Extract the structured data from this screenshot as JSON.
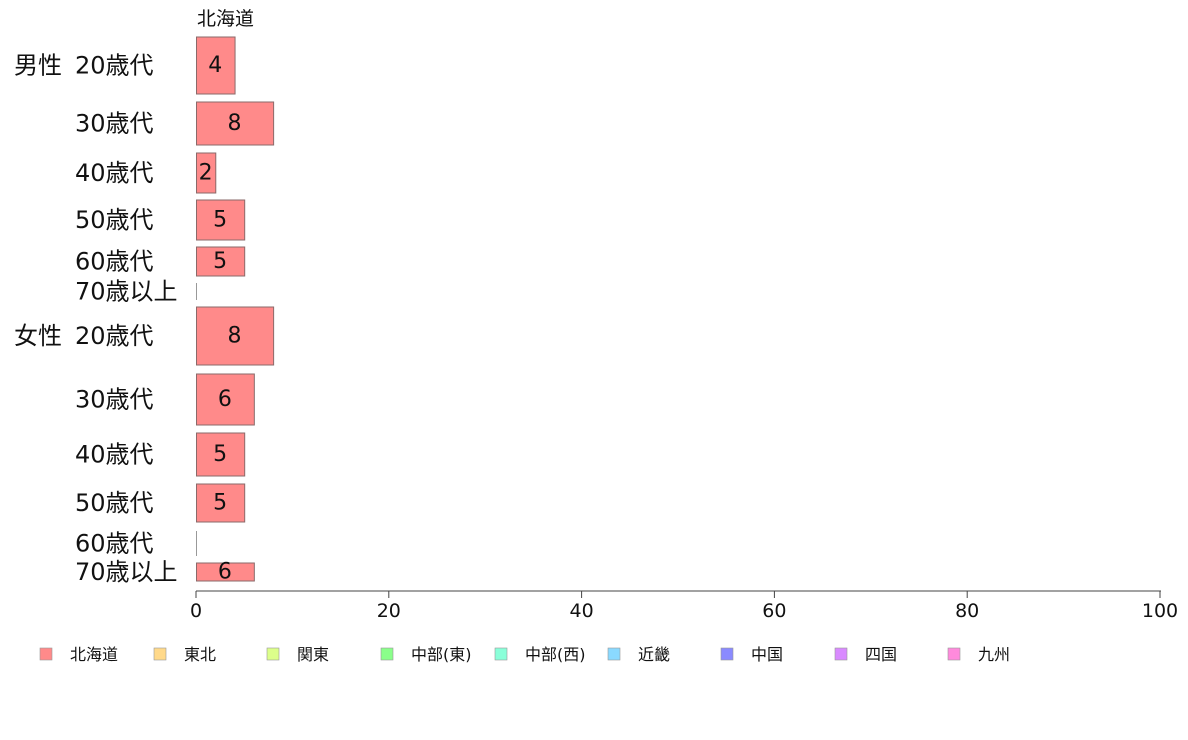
{
  "chart_data": {
    "type": "bar",
    "orientation": "horizontal",
    "series_title": "北海道",
    "xlim": [
      0,
      100
    ],
    "x_ticks": [
      "0",
      "20",
      "40",
      "60",
      "80",
      "100"
    ],
    "legend_position": "bottom",
    "rows": [
      {
        "group": "男性",
        "category": "20歳代",
        "value": 4,
        "label": "4"
      },
      {
        "group": "",
        "category": "30歳代",
        "value": 8,
        "label": "8"
      },
      {
        "group": "",
        "category": "40歳代",
        "value": 2,
        "label": "2"
      },
      {
        "group": "",
        "category": "50歳代",
        "value": 5,
        "label": "5"
      },
      {
        "group": "",
        "category": "60歳代",
        "value": 5,
        "label": "5"
      },
      {
        "group": "",
        "category": "70歳以上",
        "value": 0,
        "label": ""
      },
      {
        "group": "女性",
        "category": "20歳代",
        "value": 8,
        "label": "8"
      },
      {
        "group": "",
        "category": "30歳代",
        "value": 6,
        "label": "6"
      },
      {
        "group": "",
        "category": "40歳代",
        "value": 5,
        "label": "5"
      },
      {
        "group": "",
        "category": "50歳代",
        "value": 5,
        "label": "5"
      },
      {
        "group": "",
        "category": "60歳代",
        "value": 0,
        "label": ""
      },
      {
        "group": "",
        "category": "70歳以上",
        "value": 6,
        "label": "6"
      }
    ],
    "legend": [
      {
        "name": "北海道",
        "color": "#ff8a8a"
      },
      {
        "name": "東北",
        "color": "#ffd98a"
      },
      {
        "name": "関東",
        "color": "#dcff8a"
      },
      {
        "name": "中部(東)",
        "color": "#8aff8a"
      },
      {
        "name": "中部(西)",
        "color": "#8affd9"
      },
      {
        "name": "近畿",
        "color": "#8ad9ff"
      },
      {
        "name": "中国",
        "color": "#8a8aff"
      },
      {
        "name": "四国",
        "color": "#d98aff"
      },
      {
        "name": "九州",
        "color": "#ff8adc"
      }
    ],
    "bar_color": "#ff8a8a"
  }
}
